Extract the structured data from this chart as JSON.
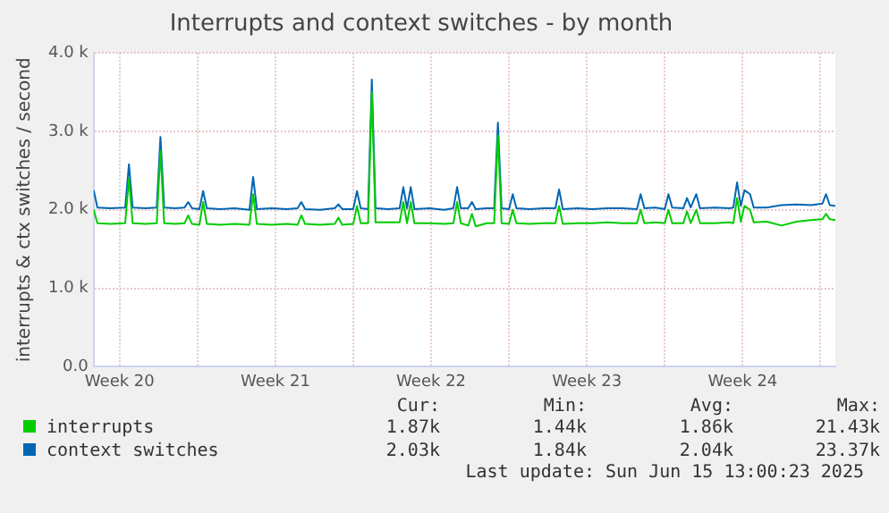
{
  "chart_data": {
    "type": "line",
    "title": "Interrupts and context switches - by month",
    "ylabel": "interrupts & ctx switches / second",
    "x": [
      "2025-05-14T08:00",
      "2025-05-14T12:00",
      "2025-05-15T02:00",
      "2025-05-15T18:00",
      "2025-05-15T22:00",
      "2025-05-16T02:00",
      "2025-05-16T16:00",
      "2025-05-17T04:00",
      "2025-05-17T08:00",
      "2025-05-17T12:00",
      "2025-05-18T00:00",
      "2025-05-18T10:00",
      "2025-05-18T14:00",
      "2025-05-18T18:00",
      "2025-05-19T02:00",
      "2025-05-19T06:00",
      "2025-05-19T10:00",
      "2025-05-20T00:00",
      "2025-05-20T16:00",
      "2025-05-21T08:00",
      "2025-05-21T12:00",
      "2025-05-21T16:00",
      "2025-05-22T08:00",
      "2025-05-23T00:00",
      "2025-05-23T12:00",
      "2025-05-23T16:00",
      "2025-05-23T20:00",
      "2025-05-24T12:00",
      "2025-05-25T04:00",
      "2025-05-25T08:00",
      "2025-05-25T12:00",
      "2025-05-26T00:00",
      "2025-05-26T04:00",
      "2025-05-26T08:00",
      "2025-05-26T16:00",
      "2025-05-26T20:00",
      "2025-05-27T00:00",
      "2025-05-27T14:00",
      "2025-05-28T02:00",
      "2025-05-28T06:00",
      "2025-05-28T10:00",
      "2025-05-28T14:00",
      "2025-05-28T18:00",
      "2025-05-29T10:00",
      "2025-05-30T02:00",
      "2025-05-30T12:00",
      "2025-05-30T16:00",
      "2025-05-30T20:00",
      "2025-05-31T04:00",
      "2025-05-31T08:00",
      "2025-05-31T12:00",
      "2025-06-01T00:00",
      "2025-06-01T08:00",
      "2025-06-01T12:00",
      "2025-06-01T16:00",
      "2025-06-02T00:00",
      "2025-06-02T04:00",
      "2025-06-02T08:00",
      "2025-06-02T22:00",
      "2025-06-03T14:00",
      "2025-06-04T02:00",
      "2025-06-04T06:00",
      "2025-06-04T10:00",
      "2025-06-05T02:00",
      "2025-06-05T18:00",
      "2025-06-06T10:00",
      "2025-06-07T02:00",
      "2025-06-07T18:00",
      "2025-06-07T22:00",
      "2025-06-08T02:00",
      "2025-06-08T14:00",
      "2025-06-09T00:00",
      "2025-06-09T04:00",
      "2025-06-09T08:00",
      "2025-06-09T20:00",
      "2025-06-10T00:00",
      "2025-06-10T04:00",
      "2025-06-10T10:00",
      "2025-06-10T14:00",
      "2025-06-11T06:00",
      "2025-06-11T22:00",
      "2025-06-12T02:00",
      "2025-06-12T06:00",
      "2025-06-12T10:00",
      "2025-06-12T14:00",
      "2025-06-12T20:00",
      "2025-06-13T00:00",
      "2025-06-13T14:00",
      "2025-06-14T06:00",
      "2025-06-14T22:00",
      "2025-06-15T14:00",
      "2025-06-16T02:00",
      "2025-06-16T06:00",
      "2025-06-16T10:00",
      "2025-06-16T16:00"
    ],
    "series": [
      {
        "name": "interrupts",
        "color": "#00cc00",
        "values": [
          2000,
          1830,
          1820,
          1830,
          2400,
          1830,
          1820,
          1830,
          2750,
          1830,
          1820,
          1830,
          1930,
          1820,
          1810,
          2100,
          1820,
          1810,
          1820,
          1810,
          2200,
          1820,
          1810,
          1820,
          1810,
          1930,
          1820,
          1810,
          1820,
          1900,
          1810,
          1820,
          2050,
          1830,
          1830,
          3500,
          1840,
          1840,
          1840,
          2100,
          1830,
          2100,
          1830,
          1830,
          1820,
          1830,
          2100,
          1830,
          1800,
          1950,
          1790,
          1830,
          1830,
          2950,
          1830,
          1820,
          2000,
          1830,
          1820,
          1830,
          1830,
          2050,
          1820,
          1830,
          1830,
          1840,
          1830,
          1830,
          2000,
          1830,
          1840,
          1830,
          2000,
          1830,
          1830,
          1980,
          1830,
          2000,
          1830,
          1830,
          1840,
          1830,
          2150,
          1850,
          2050,
          2000,
          1840,
          1850,
          1800,
          1850,
          1870,
          1880,
          1950,
          1880,
          1870
        ]
      },
      {
        "name": "context switches",
        "color": "#0066b3",
        "values": [
          2250,
          2030,
          2020,
          2030,
          2580,
          2030,
          2020,
          2030,
          2930,
          2030,
          2020,
          2030,
          2100,
          2020,
          2010,
          2240,
          2020,
          2010,
          2020,
          2000,
          2420,
          2010,
          2020,
          2010,
          2020,
          2100,
          2010,
          2000,
          2020,
          2070,
          2010,
          2010,
          2240,
          2020,
          2010,
          3660,
          2020,
          2010,
          2020,
          2290,
          2020,
          2290,
          2010,
          2020,
          2000,
          2020,
          2290,
          2020,
          2020,
          2100,
          2010,
          2020,
          2020,
          3110,
          2020,
          2010,
          2200,
          2020,
          2010,
          2020,
          2020,
          2260,
          2010,
          2020,
          2010,
          2020,
          2020,
          2010,
          2200,
          2020,
          2030,
          2010,
          2200,
          2030,
          2020,
          2150,
          2030,
          2200,
          2020,
          2030,
          2020,
          2030,
          2350,
          2050,
          2250,
          2200,
          2030,
          2030,
          2060,
          2070,
          2060,
          2080,
          2200,
          2060,
          2050
        ]
      }
    ],
    "xlim": [
      "2025-05-14T08:00",
      "2025-06-16T16:00"
    ],
    "xticks": [
      {
        "value": "2025-05-15T12:00",
        "label": "Week 20"
      },
      {
        "value": "2025-05-19",
        "label": null
      },
      {
        "value": "2025-05-22T12:00",
        "label": "Week 21"
      },
      {
        "value": "2025-05-26",
        "label": null
      },
      {
        "value": "2025-05-29T12:00",
        "label": "Week 22"
      },
      {
        "value": "2025-06-02",
        "label": null
      },
      {
        "value": "2025-06-05T12:00",
        "label": "Week 23"
      },
      {
        "value": "2025-06-09",
        "label": null
      },
      {
        "value": "2025-06-12T12:00",
        "label": "Week 24"
      },
      {
        "value": "2025-06-16",
        "label": null
      }
    ],
    "ylim": [
      0,
      4000
    ],
    "yticks": [
      {
        "value": 0,
        "label": "0.0"
      },
      {
        "value": 1000,
        "label": "1.0 k"
      },
      {
        "value": 2000,
        "label": "2.0 k"
      },
      {
        "value": 3000,
        "label": "3.0 k"
      },
      {
        "value": 4000,
        "label": "4.0 k"
      }
    ],
    "grid": true,
    "legend": "bottom",
    "marker": "none",
    "line_style": "solid",
    "annotations": [
      "Cur:",
      "Min:",
      "Avg:",
      "Max:",
      "1.87k",
      "1.44k",
      "1.86k",
      "21.43k",
      "2.03k",
      "1.84k",
      "2.04k",
      "23.37k",
      "Last update: Sun Jun 15 13:00:23 2025"
    ]
  }
}
